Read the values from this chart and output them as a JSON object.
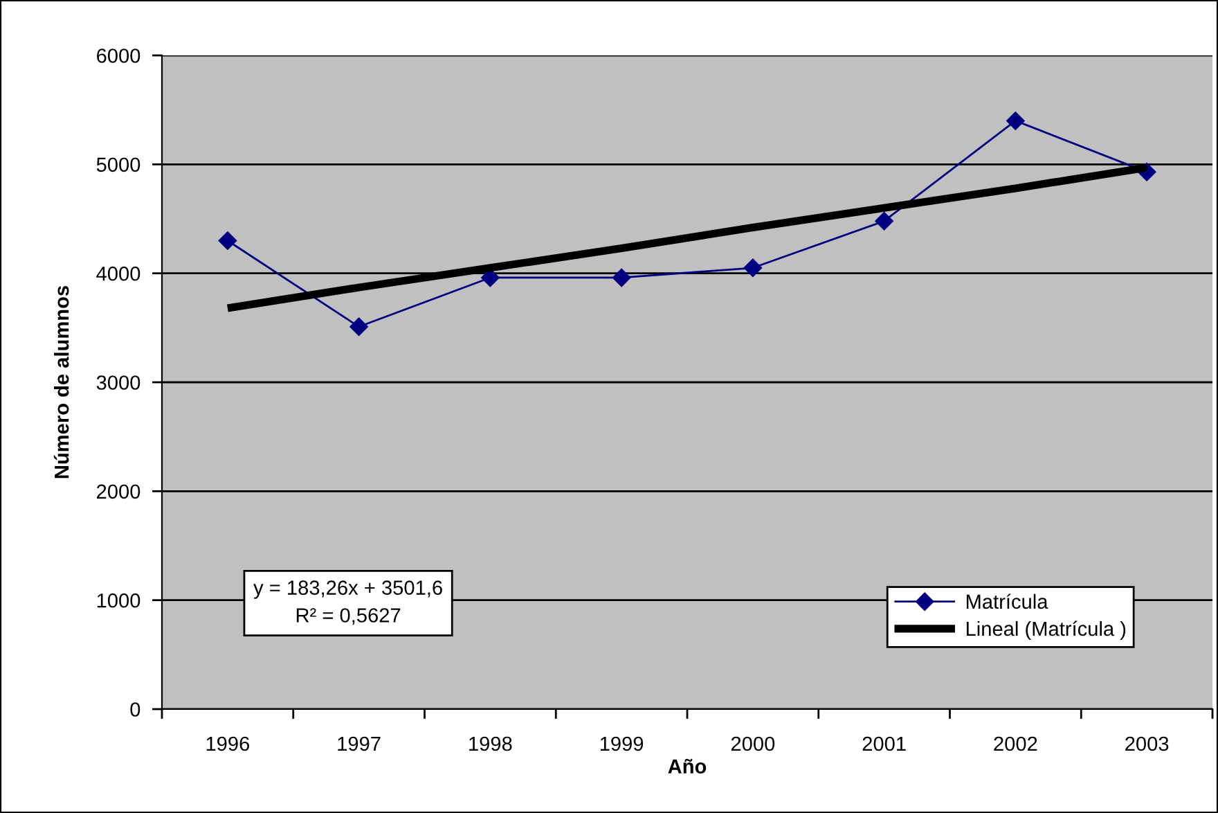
{
  "chart_data": {
    "type": "line",
    "xlabel": "Año",
    "ylabel": "Número de alumnos",
    "categories": [
      "1996",
      "1997",
      "1998",
      "1999",
      "2000",
      "2001",
      "2002",
      "2003"
    ],
    "series": [
      {
        "name": "Matrícula",
        "color": "#000080",
        "marker": "diamond",
        "values": [
          4300,
          3510,
          3960,
          3960,
          4050,
          4480,
          5400,
          4930
        ]
      },
      {
        "name": "Lineal (Matrícula )",
        "color": "#000000",
        "marker": "none",
        "values": [
          3680,
          3870,
          4050,
          4230,
          4420,
          4600,
          4780,
          4970
        ]
      }
    ],
    "ylim": [
      0,
      6000
    ],
    "yticks": [
      0,
      1000,
      2000,
      3000,
      4000,
      5000,
      6000
    ],
    "grid": "y",
    "legend": "bottom right",
    "line_style": "solid",
    "annotations": [
      "y = 183,26x + 3501,6\nR² = 0,5627"
    ]
  }
}
